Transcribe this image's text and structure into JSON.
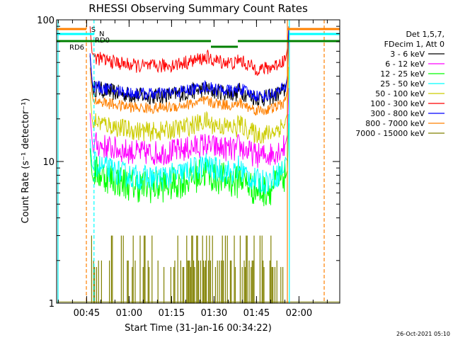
{
  "chart_data": {
    "type": "line",
    "title": "RHESSI Observing Summary Count Rates",
    "xlabel": "Start Time (31-Jan-16 00:34:22)",
    "ylabel": "Count Rate (s⁻¹ detector⁻¹)",
    "yscale": "log",
    "ylim": [
      1,
      100
    ],
    "xlim_minutes": [
      0,
      100
    ],
    "y_ticks": [
      {
        "value": 1,
        "label": "1"
      },
      {
        "value": 10,
        "label": "10"
      },
      {
        "value": 100,
        "label": "100"
      }
    ],
    "x_ticks": [
      {
        "minute": 10.6,
        "label": "00:45"
      },
      {
        "minute": 25.6,
        "label": "01:00"
      },
      {
        "minute": 40.6,
        "label": "01:15"
      },
      {
        "minute": 55.6,
        "label": "01:30"
      },
      {
        "minute": 70.6,
        "label": "01:45"
      },
      {
        "minute": 85.6,
        "label": "02:00"
      }
    ],
    "legend_header": [
      "Det 1,5,7,",
      "FDecim 1, Att 0"
    ],
    "legend_placement": "top-right, outside plot",
    "series": [
      {
        "name": "3 - 6 keV",
        "color": "#000000",
        "level": 28,
        "amp": 0.05,
        "jitter": 0.06
      },
      {
        "name": "6 - 12 keV",
        "color": "#ff00ff",
        "level": 11,
        "amp": 0.06,
        "jitter": 0.09
      },
      {
        "name": "12 - 25 keV",
        "color": "#00ff00",
        "level": 6.2,
        "amp": 0.1,
        "jitter": 0.12
      },
      {
        "name": "25 - 50 keV",
        "color": "#00ffff",
        "level": 7.2,
        "amp": 0.09,
        "jitter": 0.09
      },
      {
        "name": "50 - 100 keV",
        "color": "#cccc00",
        "level": 15.5,
        "amp": 0.07,
        "jitter": 0.07
      },
      {
        "name": "100 - 300 keV",
        "color": "#ff0000",
        "level": 45,
        "amp": 0.06,
        "jitter": 0.05
      },
      {
        "name": "300 - 800 keV",
        "color": "#0000ff",
        "level": 29,
        "amp": 0.05,
        "jitter": 0.045
      },
      {
        "name": "800 - 7000 keV",
        "color": "#ff8000",
        "level": 23,
        "amp": 0.05,
        "jitter": 0.04
      },
      {
        "name": "7000 - 15000 keV",
        "color": "#808000",
        "level": 1.5,
        "amp": 0,
        "jitter": 0
      }
    ],
    "flag_labels": [
      {
        "text": "S",
        "color": "#ff8000"
      },
      {
        "text": "N",
        "color": "#00ffff"
      },
      {
        "text": "RD0",
        "color": "#000000"
      },
      {
        "text": "RD6",
        "color": "#008000"
      }
    ],
    "timestamp": "26-Oct-2021 05:10"
  }
}
